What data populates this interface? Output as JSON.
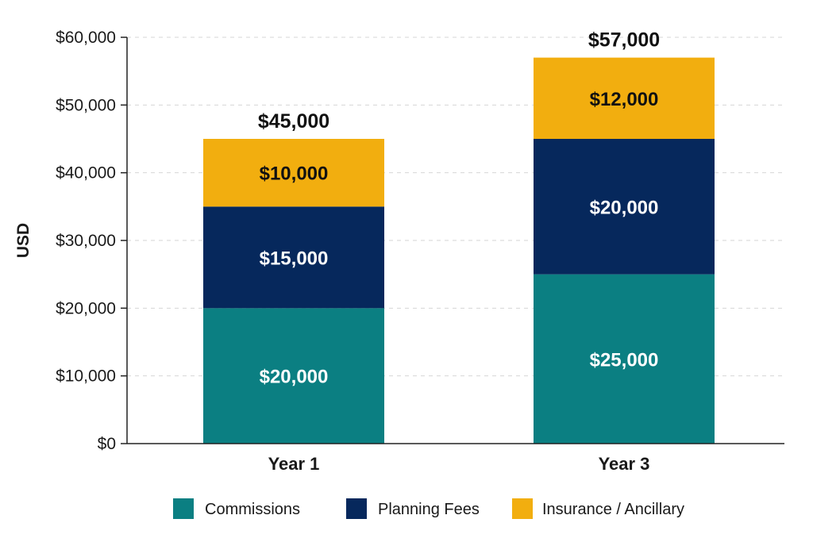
{
  "chart_data": {
    "type": "bar",
    "stacked": true,
    "ylabel": "USD",
    "ylim": [
      0,
      60000
    ],
    "yticks": [
      0,
      10000,
      20000,
      30000,
      40000,
      50000,
      60000
    ],
    "ytick_labels": [
      "$0",
      "$10,000",
      "$20,000",
      "$30,000",
      "$40,000",
      "$50,000",
      "$60,000"
    ],
    "categories": [
      "Year 1",
      "Year 3"
    ],
    "series": [
      {
        "name": "Commissions",
        "color": "#0b7f82",
        "label_color": "#ffffff",
        "values": [
          20000,
          25000
        ],
        "labels": [
          "$20,000",
          "$25,000"
        ]
      },
      {
        "name": "Planning Fees",
        "color": "#06285c",
        "label_color": "#ffffff",
        "values": [
          15000,
          20000
        ],
        "labels": [
          "$15,000",
          "$20,000"
        ]
      },
      {
        "name": "Insurance / Ancillary",
        "color": "#f2ae0f",
        "label_color": "#111111",
        "values": [
          10000,
          12000
        ],
        "labels": [
          "$10,000",
          "$12,000"
        ]
      }
    ],
    "totals": [
      45000,
      57000
    ],
    "total_labels": [
      "$45,000",
      "$57,000"
    ],
    "grid": true,
    "legend_position": "bottom"
  }
}
